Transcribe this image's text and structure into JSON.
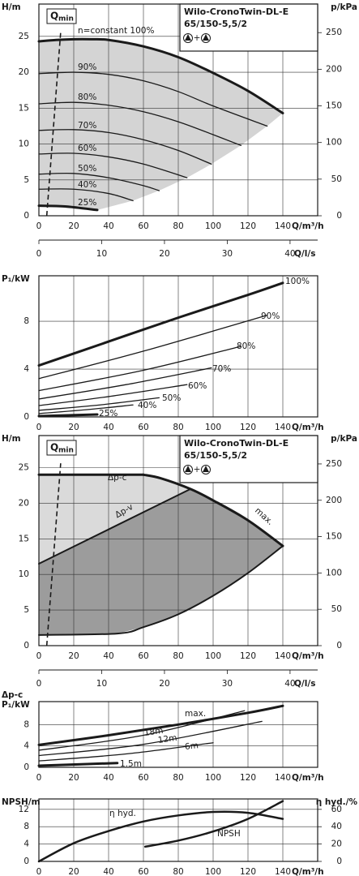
{
  "chart_data": [
    {
      "type": "line",
      "title": "Wilo-CronoTwin-DL-E",
      "subtitle": "65/150-5,5/2",
      "symbol_joiner": "+",
      "qmin": {
        "label": "Q",
        "sub": "min",
        "x": [
          4.5,
          12.5
        ],
        "y": [
          0,
          25.6
        ]
      },
      "ylabel": "H/m",
      "y2label": "p/kPa",
      "xlabel": "Q/m³/h",
      "x2label": "Q/l/s",
      "xlim": [
        0,
        160
      ],
      "xticks": [
        0,
        20,
        40,
        60,
        80,
        100,
        120,
        140
      ],
      "x2lim": [
        0,
        44.4
      ],
      "x2ticks": [
        0,
        10,
        20,
        30,
        40
      ],
      "ylim": [
        0,
        29.5
      ],
      "yticks": [
        0,
        5,
        10,
        15,
        20,
        25
      ],
      "y2lim": [
        0,
        289
      ],
      "y2ticks": [
        0,
        50,
        100,
        150,
        200,
        250
      ],
      "grid": true,
      "area_color": "#d4d4d4",
      "series": [
        {
          "name": "n=constant 100%",
          "color": "#1a1a1a",
          "width": 3,
          "x": [
            0,
            10,
            20,
            30,
            40,
            60,
            80,
            100,
            120,
            140
          ],
          "values": [
            24.3,
            24.5,
            24.6,
            24.6,
            24.5,
            23.6,
            22.1,
            19.9,
            17.4,
            14.3
          ]
        },
        {
          "name": "90%",
          "color": "#1a1a1a",
          "width": 1.3,
          "x": [
            0,
            20,
            40,
            60,
            80,
            100,
            131
          ],
          "values": [
            19.8,
            20.0,
            19.7,
            18.8,
            17.3,
            15.3,
            12.5
          ]
        },
        {
          "name": "80%",
          "color": "#1a1a1a",
          "width": 1.3,
          "x": [
            0,
            20,
            40,
            60,
            80,
            100,
            116
          ],
          "values": [
            15.6,
            15.8,
            15.4,
            14.5,
            13.1,
            11.3,
            9.8
          ]
        },
        {
          "name": "70%",
          "color": "#1a1a1a",
          "width": 1.3,
          "x": [
            0,
            20,
            40,
            60,
            80,
            99
          ],
          "values": [
            11.9,
            12.0,
            11.6,
            10.6,
            9.1,
            7.2
          ]
        },
        {
          "name": "60%",
          "color": "#1a1a1a",
          "width": 1.3,
          "x": [
            0,
            20,
            40,
            60,
            85
          ],
          "values": [
            8.6,
            8.7,
            8.2,
            7.2,
            5.3
          ]
        },
        {
          "name": "50%",
          "color": "#1a1a1a",
          "width": 1.3,
          "x": [
            0,
            20,
            40,
            60,
            69
          ],
          "values": [
            5.8,
            5.9,
            5.3,
            4.2,
            3.5
          ]
        },
        {
          "name": "40%",
          "color": "#1a1a1a",
          "width": 1.3,
          "x": [
            0,
            20,
            40,
            54
          ],
          "values": [
            3.7,
            3.7,
            3.1,
            2.1
          ]
        },
        {
          "name": "25%",
          "color": "#1a1a1a",
          "width": 3,
          "x": [
            0,
            15,
            33.5
          ],
          "values": [
            1.4,
            1.3,
            0.8
          ]
        }
      ]
    },
    {
      "type": "line",
      "ylabel": "P₁/kW",
      "xlabel": "Q/m³/h",
      "xlim": [
        0,
        160
      ],
      "xticks": [
        0,
        20,
        40,
        60,
        80,
        100,
        120,
        140
      ],
      "ylim": [
        0,
        11.8
      ],
      "yticks": [
        0,
        4,
        8
      ],
      "grid": true,
      "series": [
        {
          "name": "100%",
          "color": "#1a1a1a",
          "width": 3,
          "x": [
            0,
            40,
            80,
            120,
            140
          ],
          "values": [
            4.3,
            6.3,
            8.3,
            10.2,
            11.2
          ]
        },
        {
          "name": "90%",
          "color": "#1a1a1a",
          "width": 1.3,
          "x": [
            0,
            60,
            131
          ],
          "values": [
            3.2,
            5.5,
            8.5
          ]
        },
        {
          "name": "80%",
          "color": "#1a1a1a",
          "width": 1.3,
          "x": [
            0,
            60,
            116
          ],
          "values": [
            2.2,
            3.9,
            5.9
          ]
        },
        {
          "name": "70%",
          "color": "#1a1a1a",
          "width": 1.3,
          "x": [
            0,
            50,
            99
          ],
          "values": [
            1.5,
            2.7,
            4.1
          ]
        },
        {
          "name": "60%",
          "color": "#1a1a1a",
          "width": 1.3,
          "x": [
            0,
            40,
            85
          ],
          "values": [
            0.95,
            1.7,
            2.7
          ]
        },
        {
          "name": "50%",
          "color": "#1a1a1a",
          "width": 1.3,
          "x": [
            0,
            35,
            69
          ],
          "values": [
            0.55,
            1.0,
            1.6
          ]
        },
        {
          "name": "40%",
          "color": "#1a1a1a",
          "width": 1.3,
          "x": [
            0,
            27,
            54
          ],
          "values": [
            0.28,
            0.6,
            1.0
          ]
        },
        {
          "name": "25%",
          "color": "#1a1a1a",
          "width": 3,
          "x": [
            0,
            33.5
          ],
          "values": [
            0.07,
            0.2
          ]
        }
      ]
    },
    {
      "type": "line",
      "title": "Wilo-CronoTwin-DL-E",
      "subtitle": "65/150-5,5/2",
      "symbol_joiner": "+",
      "qmin": {
        "label": "Q",
        "sub": "min",
        "x": [
          4.5,
          12.5
        ],
        "y": [
          0,
          25.6
        ]
      },
      "ylabel": "H/m",
      "y2label": "p/kPa",
      "xlabel": "Q/m³/h",
      "x2label": "Q/l/s",
      "xlim": [
        0,
        160
      ],
      "xticks": [
        0,
        20,
        40,
        60,
        80,
        100,
        120,
        140
      ],
      "x2lim": [
        0,
        44.4
      ],
      "x2ticks": [
        0,
        10,
        20,
        30,
        40
      ],
      "ylim": [
        0,
        29.5
      ],
      "yticks": [
        0,
        5,
        10,
        15,
        20,
        25
      ],
      "y2lim": [
        0,
        289
      ],
      "y2ticks": [
        0,
        50,
        100,
        150,
        200,
        250
      ],
      "grid": true,
      "area_colors": [
        "#dadada",
        "#9c9c9c"
      ],
      "series": [
        {
          "name": "Δp-c",
          "color": "#1a1a1a",
          "width": 3,
          "x": [
            0,
            60
          ],
          "values": [
            24,
            24
          ]
        },
        {
          "name": "max.",
          "color": "#1a1a1a",
          "width": 3,
          "x": [
            60,
            70,
            87,
            100,
            120,
            140
          ],
          "values": [
            24,
            23.5,
            22.0,
            20.4,
            17.6,
            14
          ]
        },
        {
          "name": "Δp-v",
          "color": "#1a1a1a",
          "width": 2,
          "x": [
            0,
            87
          ],
          "values": [
            11.5,
            22.0
          ]
        },
        {
          "color": "#1a1a1a",
          "width": 2,
          "x": [
            0,
            45,
            60,
            80,
            100,
            120,
            140
          ],
          "values": [
            1.5,
            1.7,
            2.6,
            4.4,
            7.0,
            10.2,
            14
          ]
        }
      ]
    },
    {
      "type": "line",
      "ylabel_top": "Δp-c",
      "ylabel": "P₁/kW",
      "xlabel": "Q/m³/h",
      "xlim": [
        0,
        160
      ],
      "xticks": [
        0,
        20,
        40,
        60,
        80,
        100,
        120,
        140
      ],
      "ylim": [
        0,
        12.3
      ],
      "yticks": [
        0,
        4,
        8
      ],
      "grid": true,
      "series": [
        {
          "name": "max.",
          "color": "#1a1a1a",
          "width": 3,
          "x": [
            0,
            40,
            80,
            120,
            140
          ],
          "values": [
            4.2,
            6.0,
            8.0,
            10.2,
            11.5
          ]
        },
        {
          "name": "18m",
          "color": "#1a1a1a",
          "width": 1.3,
          "x": [
            0,
            60,
            118
          ],
          "values": [
            3.2,
            6.0,
            10.6
          ]
        },
        {
          "name": "12m",
          "color": "#1a1a1a",
          "width": 1.3,
          "x": [
            0,
            60,
            128
          ],
          "values": [
            2.2,
            4.3,
            8.6
          ]
        },
        {
          "name": "6m",
          "color": "#1a1a1a",
          "width": 1.3,
          "x": [
            0,
            50,
            100
          ],
          "values": [
            1.2,
            2.5,
            4.6
          ]
        },
        {
          "name": "1.5m",
          "color": "#1a1a1a",
          "width": 3,
          "x": [
            0,
            45
          ],
          "values": [
            0.3,
            0.8
          ]
        }
      ]
    },
    {
      "type": "line",
      "ylabel": "NPSH/m",
      "y2label": "η hyd./%",
      "xlabel": "Q/m³/h",
      "xlim": [
        0,
        160
      ],
      "xticks": [
        0,
        20,
        40,
        60,
        80,
        100,
        120,
        140
      ],
      "ylim": [
        0,
        14.4
      ],
      "yticks": [
        0,
        4,
        8,
        12
      ],
      "y2lim": [
        0,
        72
      ],
      "y2ticks": [
        0,
        20,
        40,
        60
      ],
      "grid": true,
      "series": [
        {
          "name": "η hyd.",
          "color": "#1a1a1a",
          "width": 2.5,
          "axis": "y2",
          "x": [
            0,
            20,
            40,
            60,
            80,
            100,
            120,
            140
          ],
          "values": [
            0,
            21,
            35,
            46,
            53,
            57,
            56,
            49
          ]
        },
        {
          "name": "NPSH",
          "color": "#1a1a1a",
          "width": 2.5,
          "x": [
            61,
            80,
            100,
            120,
            140
          ],
          "values": [
            3.4,
            4.8,
            6.9,
            9.8,
            13.9
          ]
        }
      ]
    }
  ]
}
